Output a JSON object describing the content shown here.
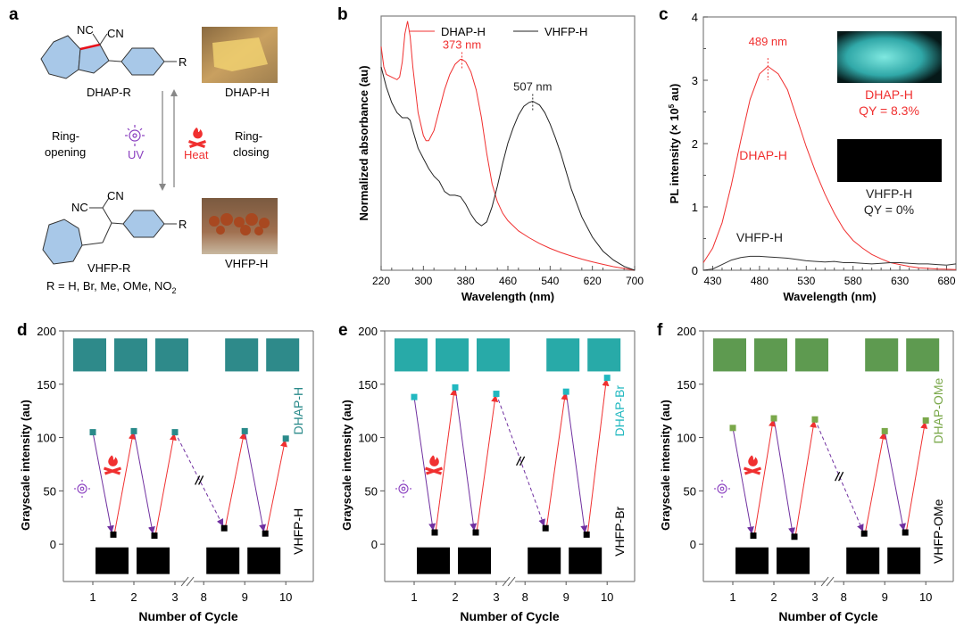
{
  "panels": {
    "a": {
      "label": "a",
      "top_molecule": "DHAP-R",
      "bottom_molecule": "VHFP-R",
      "top_photo_label": "DHAP-H",
      "bottom_photo_label": "VHFP-H",
      "substituent": "R",
      "nc_label": "NC",
      "cn_label": "CN",
      "left_text_1": "Ring-",
      "left_text_2": "opening",
      "right_text_1": "Ring-",
      "right_text_2": "closing",
      "uv_label": "UV",
      "heat_label": "Heat",
      "r_groups": "R = H, Br, Me, OMe, NO",
      "r_groups_sub": "2",
      "colors": {
        "ring_fill": "#a8c8e8",
        "bond_highlight": "#e8101a",
        "uv": "#8a3fbf",
        "heat": "#f0303a",
        "arrow": "#888888"
      }
    }
  },
  "chart_data": [
    {
      "id": "b",
      "type": "line",
      "panel_label": "b",
      "title": "",
      "xlabel": "Wavelength (nm)",
      "ylabel": "Normalized absorbance (au)",
      "xlim": [
        220,
        700
      ],
      "ylim": [
        0,
        1.0
      ],
      "xticks": [
        220,
        300,
        380,
        460,
        540,
        620,
        700
      ],
      "yticks": [],
      "legend": {
        "placement": "top",
        "entries": [
          "DHAP-H",
          "VHFP-H"
        ]
      },
      "series": [
        {
          "name": "DHAP-H",
          "color": "#f03030",
          "x": [
            220,
            225,
            230,
            240,
            250,
            255,
            260,
            265,
            270,
            275,
            280,
            290,
            300,
            305,
            310,
            320,
            330,
            340,
            350,
            360,
            370,
            373,
            380,
            390,
            400,
            410,
            420,
            430,
            440,
            450,
            460,
            480,
            500,
            520,
            540,
            560,
            580,
            600,
            620,
            640,
            660,
            680,
            700
          ],
          "y": [
            0.88,
            0.8,
            0.77,
            0.76,
            0.75,
            0.76,
            0.82,
            0.93,
            0.98,
            0.92,
            0.8,
            0.62,
            0.53,
            0.51,
            0.51,
            0.55,
            0.63,
            0.71,
            0.77,
            0.81,
            0.83,
            0.83,
            0.82,
            0.78,
            0.71,
            0.6,
            0.46,
            0.34,
            0.27,
            0.225,
            0.195,
            0.155,
            0.128,
            0.105,
            0.086,
            0.07,
            0.056,
            0.044,
            0.033,
            0.023,
            0.014,
            0.007,
            0.0
          ]
        },
        {
          "name": "VHFP-H",
          "color": "#222222",
          "x": [
            220,
            230,
            240,
            250,
            260,
            270,
            275,
            280,
            290,
            300,
            310,
            320,
            330,
            340,
            350,
            360,
            370,
            380,
            390,
            400,
            410,
            420,
            430,
            440,
            450,
            460,
            470,
            480,
            490,
            500,
            507,
            520,
            530,
            540,
            550,
            560,
            570,
            580,
            600,
            620,
            640,
            660,
            680,
            700
          ],
          "y": [
            0.8,
            0.72,
            0.66,
            0.62,
            0.6,
            0.6,
            0.59,
            0.55,
            0.48,
            0.44,
            0.4,
            0.37,
            0.35,
            0.31,
            0.295,
            0.295,
            0.29,
            0.26,
            0.22,
            0.19,
            0.175,
            0.19,
            0.25,
            0.33,
            0.42,
            0.5,
            0.56,
            0.61,
            0.645,
            0.66,
            0.665,
            0.65,
            0.62,
            0.575,
            0.52,
            0.46,
            0.39,
            0.32,
            0.21,
            0.13,
            0.075,
            0.04,
            0.015,
            0.0
          ]
        }
      ],
      "annotations": [
        {
          "text": "373 nm",
          "x": 373,
          "color": "#f03030"
        },
        {
          "text": "507 nm",
          "x": 507,
          "color": "#222222"
        }
      ]
    },
    {
      "id": "c",
      "type": "line",
      "panel_label": "c",
      "xlabel": "Wavelength (nm)",
      "ylabel": "PL intensity (× 10",
      "ylabel_sup": "5",
      "ylabel_end": " au)",
      "xlim": [
        420,
        690
      ],
      "ylim": [
        0,
        4
      ],
      "xticks": [
        430,
        480,
        530,
        580,
        630,
        680
      ],
      "yticks": [
        0,
        1,
        2,
        3,
        4
      ],
      "series": [
        {
          "name": "DHAP-H",
          "color": "#f03030",
          "x": [
            420,
            430,
            440,
            450,
            460,
            470,
            480,
            489,
            500,
            510,
            520,
            530,
            540,
            550,
            560,
            570,
            580,
            590,
            600,
            610,
            620,
            630,
            640,
            650,
            660,
            670,
            680,
            690
          ],
          "y": [
            0.12,
            0.35,
            0.75,
            1.35,
            2.05,
            2.7,
            3.1,
            3.22,
            3.1,
            2.85,
            2.4,
            1.95,
            1.55,
            1.2,
            0.9,
            0.65,
            0.47,
            0.35,
            0.25,
            0.18,
            0.12,
            0.09,
            0.06,
            0.04,
            0.03,
            0.02,
            0.015,
            0.01
          ]
        },
        {
          "name": "VHFP-H",
          "color": "#333333",
          "x": [
            420,
            430,
            440,
            450,
            460,
            470,
            480,
            490,
            500,
            510,
            520,
            530,
            540,
            550,
            560,
            570,
            580,
            590,
            600,
            610,
            620,
            630,
            640,
            650,
            660,
            670,
            680,
            690
          ],
          "y": [
            0.0,
            0.02,
            0.09,
            0.16,
            0.2,
            0.22,
            0.22,
            0.21,
            0.2,
            0.19,
            0.17,
            0.15,
            0.14,
            0.13,
            0.14,
            0.12,
            0.12,
            0.11,
            0.1,
            0.11,
            0.12,
            0.12,
            0.11,
            0.1,
            0.1,
            0.09,
            0.08,
            0.1
          ]
        }
      ],
      "annotations": [
        {
          "text": "489 nm",
          "x": 489,
          "color": "#f03030"
        },
        {
          "text": "DHAP-H",
          "color": "#f03030"
        },
        {
          "text": "VHFP-H",
          "color": "#222222"
        }
      ],
      "insets": [
        {
          "label": "DHAP-H",
          "qy": "QY = 8.3%",
          "color": "#f03030",
          "photo": "cyan-fluorescent-crystal"
        },
        {
          "label": "VHFP-H",
          "qy": "QY = 0%",
          "color": "#222222",
          "photo": "dark"
        }
      ]
    },
    {
      "id": "d",
      "type": "line",
      "panel_label": "d",
      "xlabel": "Number of Cycle",
      "ylabel": "Grayscale intensity (au)",
      "ylim": [
        -35,
        200
      ],
      "yticks": [
        0,
        50,
        100,
        150,
        200
      ],
      "xticklabels": [
        "1",
        "2",
        "3",
        "8",
        "9",
        "10"
      ],
      "high_label": "DHAP-H",
      "low_label": "VHFP-H",
      "high_color": "#2a8a8a",
      "swatch_color": "#2e8a8a",
      "high_points": [
        {
          "x": "1",
          "y": 105
        },
        {
          "x": "2",
          "y": 106
        },
        {
          "x": "3",
          "y": 105
        },
        {
          "x": "9",
          "y": 106
        },
        {
          "x": "10",
          "y": 99
        }
      ],
      "low_points": [
        {
          "x": "1.5",
          "y": 9
        },
        {
          "x": "2.5",
          "y": 8
        },
        {
          "x": "8.5",
          "y": 15
        },
        {
          "x": "9.5",
          "y": 10
        }
      ]
    },
    {
      "id": "e",
      "type": "line",
      "panel_label": "e",
      "xlabel": "Number of Cycle",
      "ylabel": "Grayscale intensity (au)",
      "ylim": [
        -35,
        200
      ],
      "yticks": [
        0,
        50,
        100,
        150,
        200
      ],
      "xticklabels": [
        "1",
        "2",
        "3",
        "8",
        "9",
        "10"
      ],
      "high_label": "DHAP-Br",
      "low_label": "VHFP-Br",
      "high_color": "#22b8c0",
      "swatch_color": "#28aaa8",
      "high_points": [
        {
          "x": "1",
          "y": 138
        },
        {
          "x": "2",
          "y": 147
        },
        {
          "x": "3",
          "y": 141
        },
        {
          "x": "9",
          "y": 143
        },
        {
          "x": "10",
          "y": 156
        }
      ],
      "low_points": [
        {
          "x": "1.5",
          "y": 11
        },
        {
          "x": "2.5",
          "y": 11
        },
        {
          "x": "8.5",
          "y": 15
        },
        {
          "x": "9.5",
          "y": 9
        }
      ]
    },
    {
      "id": "f",
      "type": "line",
      "panel_label": "f",
      "xlabel": "Number of Cycle",
      "ylabel": "Grayscale intensity (au)",
      "ylim": [
        -35,
        200
      ],
      "yticks": [
        0,
        50,
        100,
        150,
        200
      ],
      "xticklabels": [
        "1",
        "2",
        "3",
        "8",
        "9",
        "10"
      ],
      "high_label": "DHAP-OMe",
      "low_label": "VHFP-OMe",
      "high_color": "#7aa84a",
      "swatch_color": "#5e9a50",
      "high_points": [
        {
          "x": "1",
          "y": 109
        },
        {
          "x": "2",
          "y": 118
        },
        {
          "x": "3",
          "y": 117
        },
        {
          "x": "9",
          "y": 106
        },
        {
          "x": "10",
          "y": 116
        }
      ],
      "low_points": [
        {
          "x": "1.5",
          "y": 8
        },
        {
          "x": "2.5",
          "y": 7
        },
        {
          "x": "8.5",
          "y": 10
        },
        {
          "x": "9.5",
          "y": 11
        }
      ]
    }
  ],
  "colors": {
    "uv_arrow": "#7030a0",
    "heat_arrow": "#f03030",
    "axis": "#808080"
  }
}
